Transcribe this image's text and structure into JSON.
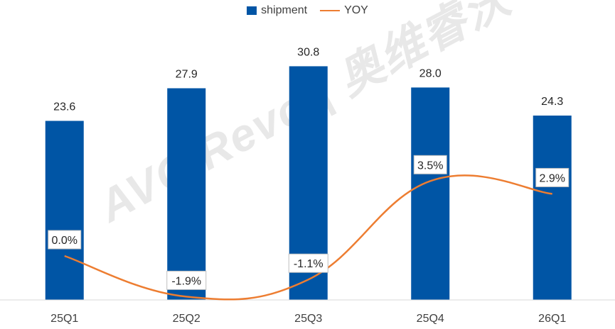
{
  "chart_data": {
    "type": "bar",
    "categories": [
      "25Q1",
      "25Q2",
      "25Q3",
      "25Q4",
      "26Q1"
    ],
    "series": [
      {
        "name": "shipment",
        "type": "bar",
        "values": [
          23.6,
          27.9,
          30.8,
          28.0,
          24.3
        ],
        "labels": [
          "23.6",
          "27.9",
          "30.8",
          "28.0",
          "24.3"
        ]
      },
      {
        "name": "YOY",
        "type": "line",
        "values": [
          0.0,
          -1.9,
          -1.1,
          3.5,
          2.9
        ],
        "labels": [
          "0.0%",
          "-1.9%",
          "-1.1%",
          "3.5%",
          "2.9%"
        ]
      }
    ],
    "legend_position": "top-center",
    "grid": false,
    "colors": {
      "bar": "#0055A5",
      "line": "#ED7D31"
    }
  },
  "watermark": "AVC Revo | 奥维睿沃"
}
